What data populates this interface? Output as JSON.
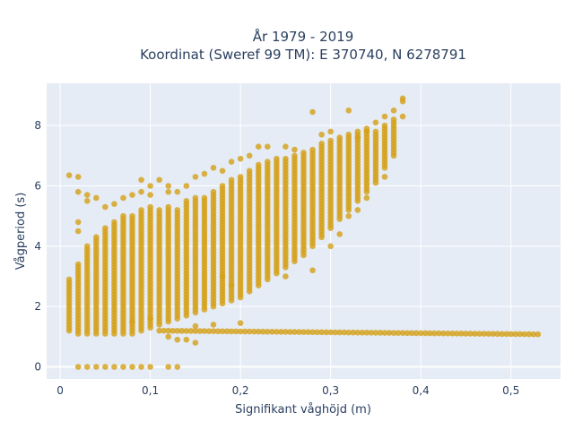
{
  "chart_data": {
    "type": "scatter",
    "title_line1": "År 1979 - 2019",
    "title_line2": "Koordinat (Sweref 99 TM): E 370740, N 6278791",
    "xlabel": "Signifikant våghöjd (m)",
    "ylabel": "Vågperiod (s)",
    "xlim": [
      -0.015,
      0.555
    ],
    "ylim": [
      -0.4,
      9.4
    ],
    "grid": true,
    "legend": "none",
    "marker_color": "#d4a017",
    "background_color": "#e5ecf6",
    "x_ticks": [
      {
        "value": 0,
        "label": "0"
      },
      {
        "value": 0.1,
        "label": "0,1"
      },
      {
        "value": 0.2,
        "label": "0,2"
      },
      {
        "value": 0.3,
        "label": "0,3"
      },
      {
        "value": 0.4,
        "label": "0,4"
      },
      {
        "value": 0.5,
        "label": "0,5"
      }
    ],
    "y_ticks": [
      {
        "value": 0,
        "label": "0"
      },
      {
        "value": 2,
        "label": "2"
      },
      {
        "value": 4,
        "label": "4"
      },
      {
        "value": 6,
        "label": "6"
      },
      {
        "value": 8,
        "label": "8"
      }
    ],
    "columns": [
      {
        "x": 0.01,
        "ranges": [
          [
            1.2,
            2.9
          ]
        ]
      },
      {
        "x": 0.02,
        "ranges": [
          [
            1.1,
            3.4
          ]
        ]
      },
      {
        "x": 0.03,
        "ranges": [
          [
            1.1,
            4.0
          ]
        ]
      },
      {
        "x": 0.04,
        "ranges": [
          [
            1.1,
            4.3
          ]
        ]
      },
      {
        "x": 0.05,
        "ranges": [
          [
            1.1,
            4.6
          ]
        ]
      },
      {
        "x": 0.06,
        "ranges": [
          [
            1.1,
            4.8
          ]
        ]
      },
      {
        "x": 0.07,
        "ranges": [
          [
            1.1,
            5.0
          ]
        ]
      },
      {
        "x": 0.08,
        "ranges": [
          [
            1.1,
            5.0
          ]
        ]
      },
      {
        "x": 0.09,
        "ranges": [
          [
            1.2,
            5.2
          ]
        ]
      },
      {
        "x": 0.1,
        "ranges": [
          [
            1.3,
            5.3
          ]
        ]
      },
      {
        "x": 0.11,
        "ranges": [
          [
            1.4,
            5.2
          ]
        ]
      },
      {
        "x": 0.12,
        "ranges": [
          [
            1.5,
            5.3
          ]
        ]
      },
      {
        "x": 0.13,
        "ranges": [
          [
            1.6,
            5.2
          ]
        ]
      },
      {
        "x": 0.14,
        "ranges": [
          [
            1.7,
            5.5
          ]
        ]
      },
      {
        "x": 0.15,
        "ranges": [
          [
            1.8,
            5.6
          ]
        ]
      },
      {
        "x": 0.16,
        "ranges": [
          [
            1.9,
            5.6
          ]
        ]
      },
      {
        "x": 0.17,
        "ranges": [
          [
            2.0,
            5.8
          ]
        ]
      },
      {
        "x": 0.18,
        "ranges": [
          [
            2.1,
            6.0
          ]
        ]
      },
      {
        "x": 0.19,
        "ranges": [
          [
            2.2,
            6.2
          ]
        ]
      },
      {
        "x": 0.2,
        "ranges": [
          [
            2.3,
            6.3
          ]
        ]
      },
      {
        "x": 0.21,
        "ranges": [
          [
            2.5,
            6.5
          ]
        ]
      },
      {
        "x": 0.22,
        "ranges": [
          [
            2.7,
            6.7
          ]
        ]
      },
      {
        "x": 0.23,
        "ranges": [
          [
            2.9,
            6.8
          ]
        ]
      },
      {
        "x": 0.24,
        "ranges": [
          [
            3.1,
            6.9
          ]
        ]
      },
      {
        "x": 0.25,
        "ranges": [
          [
            3.3,
            6.9
          ]
        ]
      },
      {
        "x": 0.26,
        "ranges": [
          [
            3.5,
            7.0
          ]
        ]
      },
      {
        "x": 0.27,
        "ranges": [
          [
            3.7,
            7.1
          ]
        ]
      },
      {
        "x": 0.28,
        "ranges": [
          [
            4.0,
            7.2
          ]
        ]
      },
      {
        "x": 0.29,
        "ranges": [
          [
            4.3,
            7.4
          ]
        ]
      },
      {
        "x": 0.3,
        "ranges": [
          [
            4.6,
            7.5
          ]
        ]
      },
      {
        "x": 0.31,
        "ranges": [
          [
            4.9,
            7.6
          ]
        ]
      },
      {
        "x": 0.32,
        "ranges": [
          [
            5.2,
            7.7
          ]
        ]
      },
      {
        "x": 0.33,
        "ranges": [
          [
            5.5,
            7.8
          ]
        ]
      },
      {
        "x": 0.34,
        "ranges": [
          [
            5.8,
            7.9
          ]
        ]
      },
      {
        "x": 0.35,
        "ranges": [
          [
            6.1,
            7.8
          ]
        ]
      },
      {
        "x": 0.36,
        "ranges": [
          [
            6.6,
            8.0
          ]
        ]
      },
      {
        "x": 0.37,
        "ranges": [
          [
            7.0,
            8.2
          ]
        ]
      }
    ],
    "low_band": {
      "x_start": 0.11,
      "x_end": 0.53,
      "x_step": 0.005,
      "y_start": 1.2,
      "y_end": 1.08
    },
    "zero_row": [
      0.02,
      0.03,
      0.04,
      0.05,
      0.06,
      0.07,
      0.08,
      0.09,
      0.1,
      0.12,
      0.13
    ],
    "outliers": [
      [
        0.01,
        6.35
      ],
      [
        0.02,
        6.3
      ],
      [
        0.02,
        5.8
      ],
      [
        0.03,
        5.7
      ],
      [
        0.03,
        5.5
      ],
      [
        0.04,
        5.6
      ],
      [
        0.02,
        4.8
      ],
      [
        0.02,
        4.5
      ],
      [
        0.05,
        5.3
      ],
      [
        0.06,
        5.4
      ],
      [
        0.07,
        5.6
      ],
      [
        0.08,
        5.7
      ],
      [
        0.09,
        6.2
      ],
      [
        0.09,
        5.8
      ],
      [
        0.1,
        6.0
      ],
      [
        0.11,
        6.2
      ],
      [
        0.1,
        5.7
      ],
      [
        0.12,
        6.0
      ],
      [
        0.12,
        5.8
      ],
      [
        0.13,
        5.8
      ],
      [
        0.14,
        6.0
      ],
      [
        0.15,
        6.3
      ],
      [
        0.16,
        6.4
      ],
      [
        0.17,
        6.6
      ],
      [
        0.18,
        6.5
      ],
      [
        0.19,
        6.8
      ],
      [
        0.2,
        6.9
      ],
      [
        0.21,
        7.0
      ],
      [
        0.22,
        7.3
      ],
      [
        0.23,
        7.3
      ],
      [
        0.25,
        7.3
      ],
      [
        0.26,
        7.2
      ],
      [
        0.28,
        8.45
      ],
      [
        0.32,
        8.5
      ],
      [
        0.34,
        7.8
      ],
      [
        0.33,
        7.6
      ],
      [
        0.3,
        7.8
      ],
      [
        0.36,
        8.3
      ],
      [
        0.37,
        8.5
      ],
      [
        0.38,
        8.9
      ],
      [
        0.38,
        8.8
      ],
      [
        0.38,
        8.3
      ],
      [
        0.35,
        8.1
      ],
      [
        0.29,
        7.7
      ],
      [
        0.2,
        1.45
      ],
      [
        0.17,
        1.4
      ],
      [
        0.15,
        1.35
      ],
      [
        0.13,
        0.9
      ],
      [
        0.15,
        0.8
      ],
      [
        0.14,
        0.9
      ],
      [
        0.12,
        1.0
      ],
      [
        0.08,
        1.5
      ],
      [
        0.1,
        1.6
      ],
      [
        0.18,
        3.0
      ],
      [
        0.19,
        2.7
      ],
      [
        0.28,
        3.2
      ],
      [
        0.25,
        3.0
      ],
      [
        0.3,
        4.0
      ],
      [
        0.31,
        4.4
      ],
      [
        0.32,
        5.0
      ],
      [
        0.33,
        5.2
      ],
      [
        0.34,
        5.6
      ],
      [
        0.36,
        6.3
      ]
    ]
  }
}
